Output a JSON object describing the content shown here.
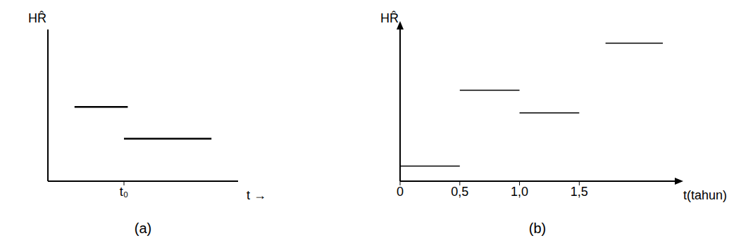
{
  "chart_data": [
    {
      "type": "line",
      "caption": "(a)",
      "ylabel": "HR̂",
      "xlabel": "t →",
      "xlim": [
        0,
        10
      ],
      "ylim": [
        0,
        10
      ],
      "xticks": [
        {
          "value": 4,
          "label": "t₀"
        }
      ],
      "yticks": [],
      "tick_labels": "x",
      "grid": false,
      "color": "#000000",
      "marker": "none",
      "series": [
        {
          "x": [
            1.4,
            4.2
          ],
          "values": [
            4.9,
            4.9
          ]
        },
        {
          "x": [
            4.0,
            8.6
          ],
          "values": [
            2.8,
            2.8
          ]
        }
      ]
    },
    {
      "type": "line",
      "caption": "(b)",
      "ylabel": "HR̂",
      "xlabel": "t(tahun)",
      "xlim": [
        0,
        2.3
      ],
      "ylim": [
        0,
        10
      ],
      "xticks": [
        0,
        {
          "value": 0.5,
          "label": "0,5"
        },
        {
          "value": 1,
          "label": "1,0"
        },
        {
          "value": 1.5,
          "label": "1,5"
        }
      ],
      "yticks": [],
      "tick_labels": "x",
      "grid": false,
      "color": "#000000",
      "marker": "none",
      "series": [
        {
          "x": [
            0,
            0.5
          ],
          "values": [
            1,
            1
          ]
        },
        {
          "x": [
            0.5,
            1.0
          ],
          "values": [
            6,
            6
          ]
        },
        {
          "x": [
            1.0,
            1.5
          ],
          "values": [
            4.5,
            4.5
          ]
        },
        {
          "x": [
            1.72,
            2.2
          ],
          "values": [
            9.1,
            9.1
          ]
        }
      ]
    }
  ]
}
